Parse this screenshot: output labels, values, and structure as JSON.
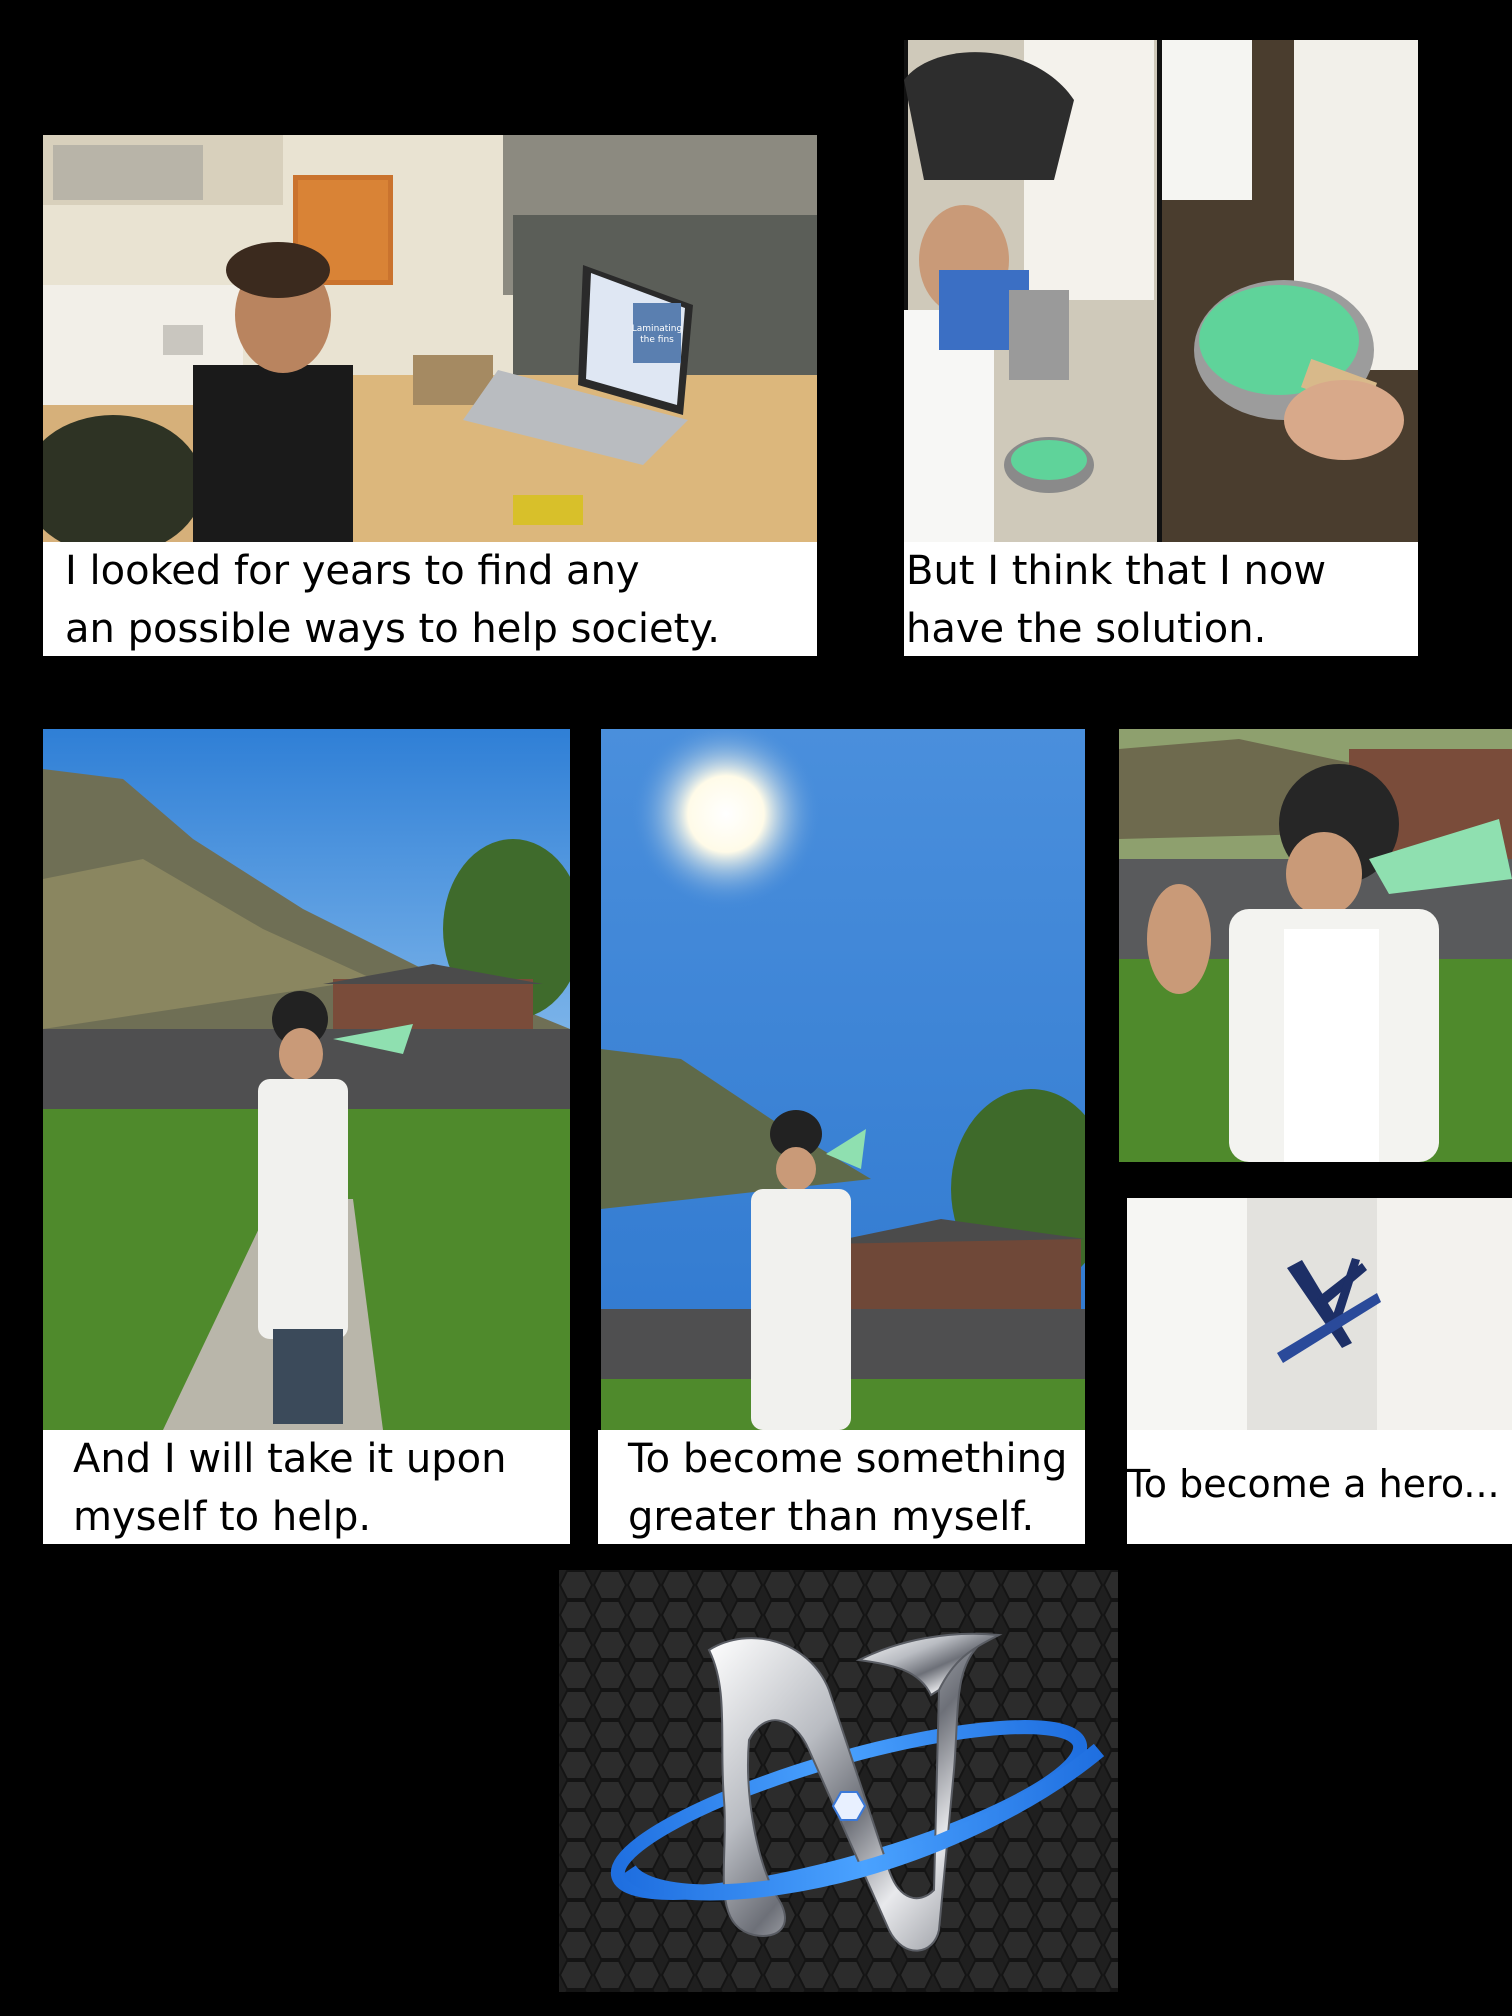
{
  "comic": {
    "panels": [
      {
        "id": "workshop",
        "caption_lines": [
          "I looked for years to find any",
          "an possible ways to help society."
        ]
      },
      {
        "id": "mixing",
        "caption_lines": [
          "But I think that I now",
          "have the solution."
        ]
      },
      {
        "id": "drinking-street",
        "caption_lines": [
          "And I will take it upon",
          "myself to help."
        ]
      },
      {
        "id": "drinking-sun",
        "caption_lines": [
          "To become something",
          "greater than myself."
        ]
      },
      {
        "id": "drinking-closeup",
        "caption_lines": []
      },
      {
        "id": "shirt-logo-closeup",
        "caption_lines": [
          "To become a hero..."
        ]
      }
    ],
    "laptop_screen_text": [
      "Laminating",
      "the fins"
    ],
    "logo": {
      "description_icon": "chrome-n-logo-icon",
      "ring_color": "#2f8cff",
      "background": "#1c1c1c"
    },
    "colors": {
      "background": "#000000",
      "caption_bg": "#ffffff",
      "liquid_green": "#6fe0a0",
      "sky_blue": "#3a86d8"
    }
  }
}
